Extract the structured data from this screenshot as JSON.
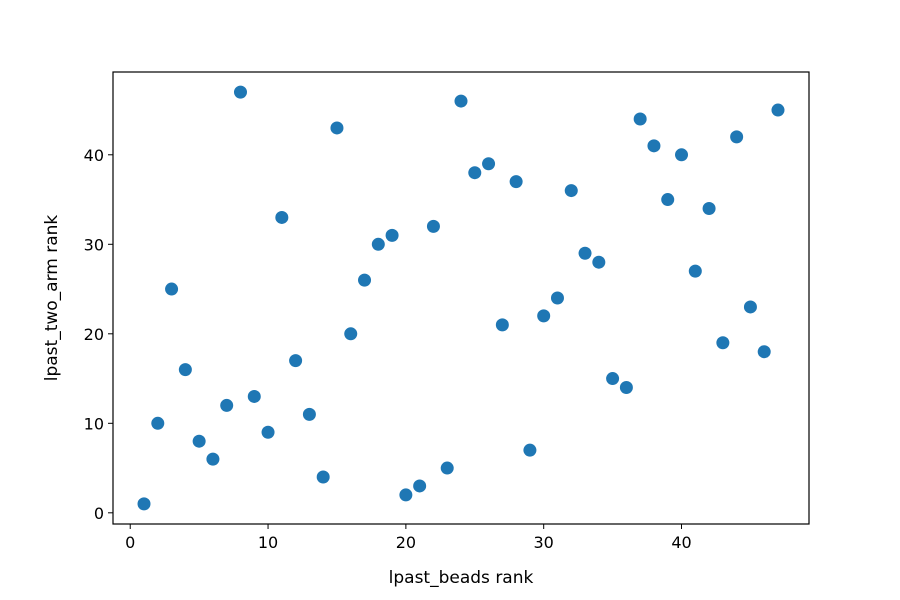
{
  "chart_data": {
    "type": "scatter",
    "title": "",
    "xlabel": "lpast_beads rank",
    "ylabel": "lpast_two_arm rank",
    "xlim": [
      -1.25,
      49.25
    ],
    "ylim": [
      -1.25,
      49.25
    ],
    "xticks": [
      0,
      10,
      20,
      30,
      40
    ],
    "yticks": [
      0,
      10,
      20,
      30,
      40
    ],
    "xtick_labels": [
      "0",
      "10",
      "20",
      "30",
      "40"
    ],
    "ytick_labels": [
      "0",
      "10",
      "20",
      "30",
      "40"
    ],
    "grid": false,
    "marker_color": "#1f77b4",
    "series": [
      {
        "x": [
          1,
          2,
          3,
          4,
          5,
          6,
          7,
          8,
          9,
          10,
          11,
          12,
          13,
          14,
          15,
          16,
          17,
          18,
          19,
          20,
          21,
          22,
          23,
          24,
          25,
          26,
          27,
          28,
          29,
          30,
          31,
          32,
          33,
          34,
          35,
          36,
          37,
          38,
          39,
          40,
          41,
          42,
          43,
          44,
          45,
          46,
          47
        ],
        "y": [
          1,
          10,
          25,
          16,
          8,
          6,
          12,
          47,
          13,
          9,
          33,
          17,
          11,
          4,
          43,
          20,
          26,
          30,
          31,
          2,
          3,
          32,
          5,
          46,
          38,
          39,
          21,
          37,
          7,
          22,
          24,
          36,
          29,
          28,
          15,
          14,
          44,
          41,
          35,
          40,
          27,
          34,
          19,
          42,
          23,
          18,
          45
        ]
      }
    ]
  }
}
